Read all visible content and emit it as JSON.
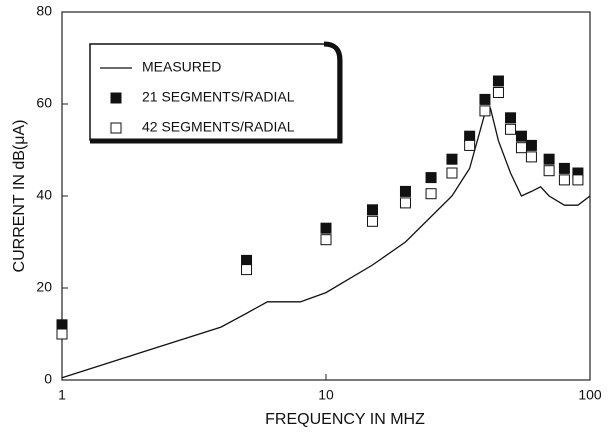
{
  "chart_data": {
    "type": "line",
    "xlabel": "FREQUENCY IN MHZ",
    "ylabel": "CURRENT IN dB(μA)",
    "xscale": "log",
    "xlim": [
      1,
      100
    ],
    "xticks": [
      1,
      10,
      100
    ],
    "ylim": [
      0,
      80
    ],
    "yticks": [
      0,
      20,
      40,
      60,
      80
    ],
    "legend": "upper left",
    "series": [
      {
        "name": "MEASURED",
        "type": "line",
        "color": "#111111",
        "x": [
          1,
          2,
          4,
          5,
          6,
          7,
          8,
          10,
          15,
          20,
          30,
          35,
          40,
          42,
          45,
          50,
          55,
          60,
          65,
          70,
          80,
          90,
          100
        ],
        "values": [
          0.5,
          6,
          11.5,
          14.5,
          17,
          17,
          17,
          19,
          25,
          30,
          40,
          46,
          58,
          59,
          52,
          45,
          40,
          41,
          42,
          40,
          38,
          38,
          40
        ]
      },
      {
        "name": "21 SEGMENTS/RADIAL",
        "type": "scatter",
        "marker": "filled-square",
        "color": "#111111",
        "x": [
          1,
          5,
          10,
          15,
          20,
          25,
          30,
          35,
          40,
          45,
          50,
          55,
          60,
          70,
          80,
          90
        ],
        "values": [
          12,
          26,
          33,
          37,
          41,
          44,
          48,
          53,
          61,
          65,
          57,
          53,
          51,
          48,
          46,
          45
        ]
      },
      {
        "name": "42 SEGMENTS/RADIAL",
        "type": "scatter",
        "marker": "open-square",
        "color": "#111111",
        "x": [
          1,
          5,
          10,
          15,
          20,
          25,
          30,
          35,
          40,
          45,
          50,
          55,
          60,
          70,
          80,
          90
        ],
        "values": [
          10,
          24,
          30.5,
          34.5,
          38.5,
          40.5,
          45,
          51,
          58.5,
          62.5,
          54.5,
          50.5,
          48.5,
          45.5,
          43.5,
          43.5
        ]
      }
    ]
  }
}
